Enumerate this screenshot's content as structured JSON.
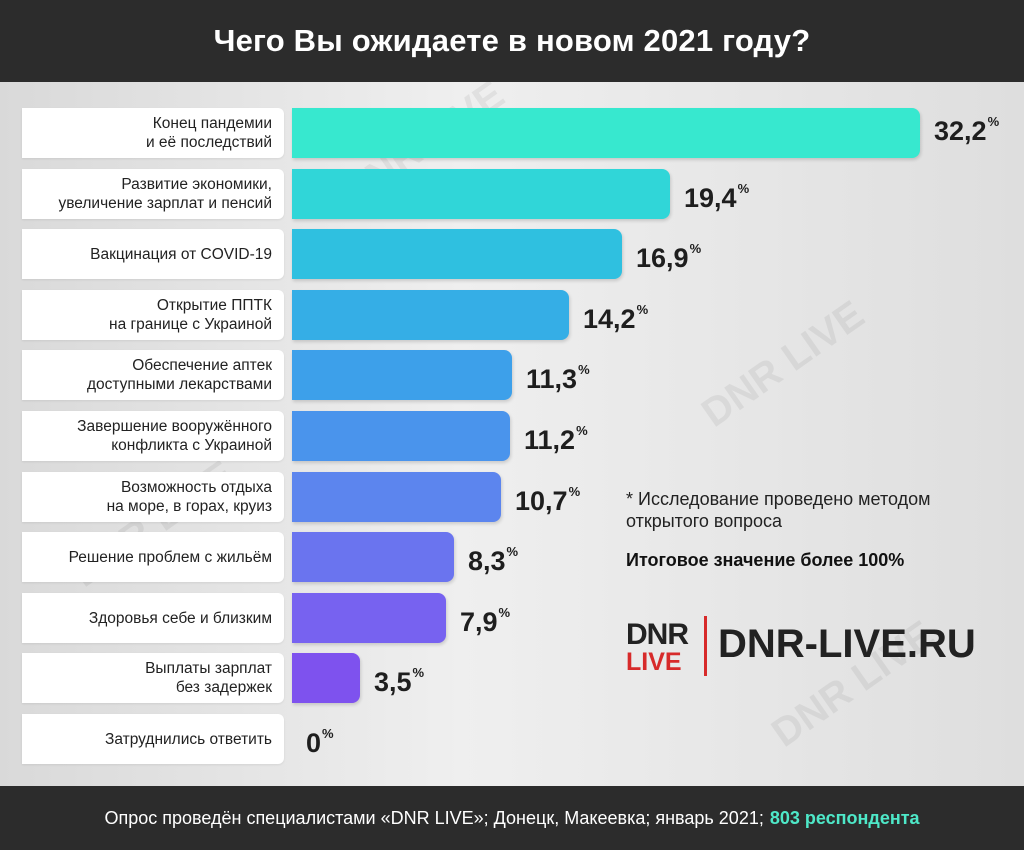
{
  "title": "Чего Вы ожидаете в новом 2021 году?",
  "chart_data": {
    "type": "bar",
    "orientation": "horizontal",
    "title": "Чего Вы ожидаете в новом 2021 году?",
    "unit": "%",
    "categories": [
      "Конец пандемии\nи её последствий",
      "Развитие экономики,\nувеличение зарплат и пенсий",
      "Вакцинация от COVID-19",
      "Открытие ППТК\nна границе с Украиной",
      "Обеспечение аптек\nдоступными лекарствами",
      "Завершение вооружённого\nконфликта с Украиной",
      "Возможность отдыха\nна море, в горах, круиз",
      "Решение проблем с жильём",
      "Здоровья себе и близким",
      "Выплаты зарплат\nбез задержек",
      "Затруднились ответить"
    ],
    "values": [
      32.2,
      19.4,
      16.9,
      14.2,
      11.3,
      11.2,
      10.7,
      8.3,
      7.9,
      3.5,
      0
    ],
    "value_labels": [
      "32,2",
      "19,4",
      "16,9",
      "14,2",
      "11,3",
      "11,2",
      "10,7",
      "8,3",
      "7,9",
      "3,5",
      "0"
    ],
    "bar_colors": [
      "#37e8cf",
      "#30d6d8",
      "#2fc0e0",
      "#35aee6",
      "#3da0ea",
      "#4a94ec",
      "#5c85ee",
      "#6a74ef",
      "#7762f0",
      "#7e52ee",
      "#8a46ec"
    ]
  },
  "notes": {
    "method": "* Исследование проведено методом открытого вопроса",
    "total": "Итоговое значение более 100%"
  },
  "logo": {
    "dnr": "DNR",
    "live": "LIVE",
    "site": "DNR-LIVE.RU"
  },
  "footer": {
    "text": "Опрос проведён специалистами «DNR LIVE»; Донецк, Макеевка; январь 2021;",
    "highlight": "803 респондента"
  },
  "watermark": "DNR LIVE"
}
